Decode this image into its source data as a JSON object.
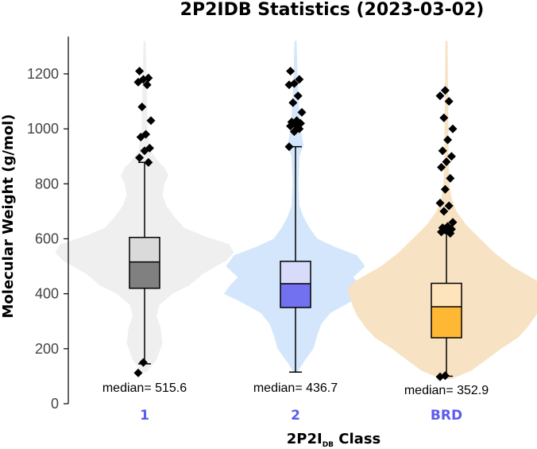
{
  "chart_data": {
    "type": "violin-box",
    "title": "2P2IDB Statistics (2023-03-02)",
    "ylabel": "Molecular Weight (g/mol)",
    "xlabel_main": "2P2I",
    "xlabel_sub": "DB",
    "xlabel_tail": " Class",
    "ylim": [
      0,
      1330
    ],
    "yticks": [
      0,
      200,
      400,
      600,
      800,
      1000,
      1200
    ],
    "median_prefix": "median= ",
    "tick_color": "#5b5bf0",
    "categories": [
      {
        "label": "1",
        "median": 515.6,
        "median_text": "515.6",
        "q1": 420,
        "q3": 605,
        "whisker_low": 145,
        "whisker_high": 878,
        "violin_min": 115,
        "violin_max": 1320,
        "violin_color": "#efefef",
        "box_upper_color": "#dadada",
        "box_lower_color": "#808080",
        "outliers": [
          112,
          150,
          878,
          895,
          920,
          930,
          970,
          980,
          1030,
          1080,
          1160,
          1170,
          1180,
          1185,
          1210
        ],
        "violin": [
          [
            115,
            0.02
          ],
          [
            160,
            0.12
          ],
          [
            220,
            0.18
          ],
          [
            280,
            0.16
          ],
          [
            320,
            0.12
          ],
          [
            360,
            0.15
          ],
          [
            400,
            0.28
          ],
          [
            430,
            0.45
          ],
          [
            470,
            0.58
          ],
          [
            500,
            0.72
          ],
          [
            520,
            0.82
          ],
          [
            550,
            0.9
          ],
          [
            580,
            0.85
          ],
          [
            610,
            0.6
          ],
          [
            640,
            0.4
          ],
          [
            680,
            0.3
          ],
          [
            720,
            0.22
          ],
          [
            760,
            0.18
          ],
          [
            800,
            0.2
          ],
          [
            830,
            0.24
          ],
          [
            860,
            0.2
          ],
          [
            880,
            0.14
          ],
          [
            920,
            0.06
          ],
          [
            1000,
            0.03
          ],
          [
            1200,
            0.02
          ],
          [
            1320,
            0.01
          ]
        ]
      },
      {
        "label": "2",
        "median": 436.7,
        "median_text": "436.7",
        "q1": 350,
        "q3": 518,
        "whisker_low": 115,
        "whisker_high": 935,
        "violin_min": 115,
        "violin_max": 1320,
        "violin_color": "#d3e6fb",
        "box_upper_color": "#d8dbfa",
        "box_lower_color": "#7272f0",
        "outliers": [
          935,
          990,
          1000,
          1010,
          1015,
          1020,
          1025,
          1030,
          1060,
          1095,
          1120,
          1160,
          1165,
          1180,
          1210
        ],
        "violin": [
          [
            115,
            0.02
          ],
          [
            150,
            0.08
          ],
          [
            200,
            0.18
          ],
          [
            250,
            0.22
          ],
          [
            290,
            0.26
          ],
          [
            330,
            0.35
          ],
          [
            370,
            0.55
          ],
          [
            400,
            0.72
          ],
          [
            430,
            0.66
          ],
          [
            460,
            0.58
          ],
          [
            500,
            0.7
          ],
          [
            540,
            0.62
          ],
          [
            570,
            0.4
          ],
          [
            600,
            0.22
          ],
          [
            640,
            0.14
          ],
          [
            680,
            0.08
          ],
          [
            720,
            0.04
          ],
          [
            800,
            0.03
          ],
          [
            900,
            0.04
          ],
          [
            940,
            0.08
          ],
          [
            1000,
            0.05
          ],
          [
            1100,
            0.03
          ],
          [
            1200,
            0.02
          ],
          [
            1320,
            0.01
          ]
        ]
      },
      {
        "label": "BRD",
        "median": 352.9,
        "median_text": "352.9",
        "q1": 240,
        "q3": 438,
        "whisker_low": 100,
        "whisker_high": 620,
        "violin_min": 90,
        "violin_max": 1320,
        "violin_color": "#f7e2c4",
        "box_upper_color": "#fde4bd",
        "box_lower_color": "#ffb833",
        "outliers": [
          98,
          102,
          620,
          625,
          630,
          635,
          640,
          645,
          660,
          700,
          720,
          730,
          780,
          820,
          860,
          880,
          900,
          920,
          960,
          1000,
          1040,
          1100,
          1120,
          1140
        ],
        "violin": [
          [
            90,
            0.05
          ],
          [
            120,
            0.25
          ],
          [
            160,
            0.4
          ],
          [
            200,
            0.55
          ],
          [
            240,
            0.72
          ],
          [
            280,
            0.82
          ],
          [
            320,
            0.9
          ],
          [
            360,
            0.95
          ],
          [
            400,
            0.98
          ],
          [
            420,
            1.0
          ],
          [
            450,
            0.9
          ],
          [
            500,
            0.66
          ],
          [
            550,
            0.48
          ],
          [
            600,
            0.34
          ],
          [
            650,
            0.2
          ],
          [
            700,
            0.1
          ],
          [
            750,
            0.05
          ],
          [
            800,
            0.03
          ],
          [
            900,
            0.02
          ],
          [
            1000,
            0.02
          ],
          [
            1320,
            0.01
          ]
        ]
      }
    ]
  }
}
